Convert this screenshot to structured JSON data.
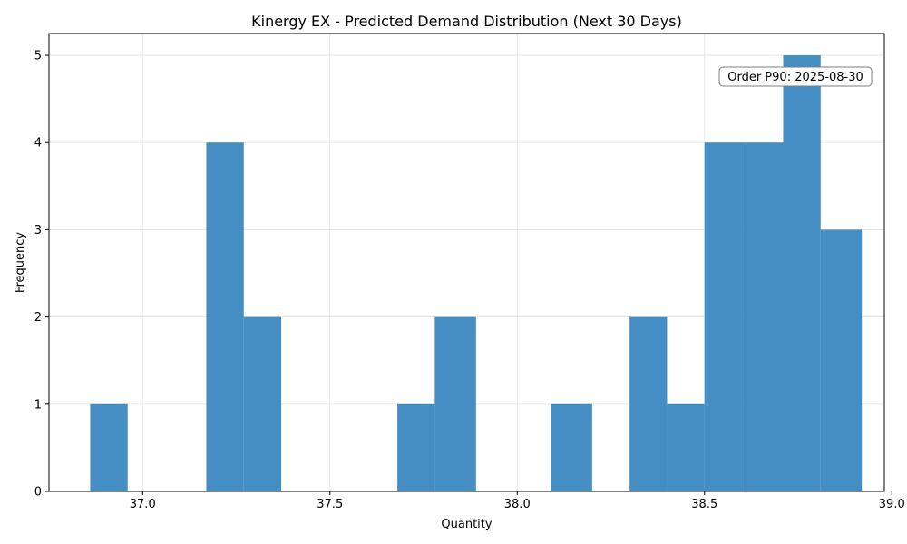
{
  "chart_data": {
    "type": "bar",
    "title": "Kinergy EX - Predicted Demand Distribution (Next 30 Days)",
    "xlabel": "Quantity",
    "ylabel": "Frequency",
    "xlim": [
      36.75,
      38.98
    ],
    "ylim": [
      0,
      5.25
    ],
    "grid": true,
    "bar_color": "#3584bf",
    "bins": [
      {
        "start": 36.86,
        "end": 36.96,
        "count": 1
      },
      {
        "start": 36.96,
        "end": 37.06,
        "count": 0
      },
      {
        "start": 37.06,
        "end": 37.17,
        "count": 0
      },
      {
        "start": 37.17,
        "end": 37.27,
        "count": 4
      },
      {
        "start": 37.27,
        "end": 37.37,
        "count": 2
      },
      {
        "start": 37.37,
        "end": 37.48,
        "count": 0
      },
      {
        "start": 37.48,
        "end": 37.58,
        "count": 0
      },
      {
        "start": 37.58,
        "end": 37.68,
        "count": 0
      },
      {
        "start": 37.68,
        "end": 37.78,
        "count": 1
      },
      {
        "start": 37.78,
        "end": 37.89,
        "count": 2
      },
      {
        "start": 37.89,
        "end": 37.99,
        "count": 0
      },
      {
        "start": 37.99,
        "end": 38.09,
        "count": 0
      },
      {
        "start": 38.09,
        "end": 38.2,
        "count": 1
      },
      {
        "start": 38.2,
        "end": 38.3,
        "count": 0
      },
      {
        "start": 38.3,
        "end": 38.4,
        "count": 2
      },
      {
        "start": 38.4,
        "end": 38.5,
        "count": 1
      },
      {
        "start": 38.5,
        "end": 38.61,
        "count": 4
      },
      {
        "start": 38.61,
        "end": 38.71,
        "count": 4
      },
      {
        "start": 38.71,
        "end": 38.81,
        "count": 5
      },
      {
        "start": 38.81,
        "end": 38.92,
        "count": 3
      }
    ],
    "x_ticks": [
      37.0,
      37.5,
      38.0,
      38.5,
      39.0
    ],
    "x_tick_labels": [
      "37.0",
      "37.5",
      "38.0",
      "38.5",
      "39.0"
    ],
    "y_ticks": [
      0,
      1,
      2,
      3,
      4,
      5
    ],
    "y_tick_labels": [
      "0",
      "1",
      "2",
      "3",
      "4",
      "5"
    ],
    "annotation": "Order P90: 2025-08-30",
    "annotation_placement": "top-right"
  }
}
